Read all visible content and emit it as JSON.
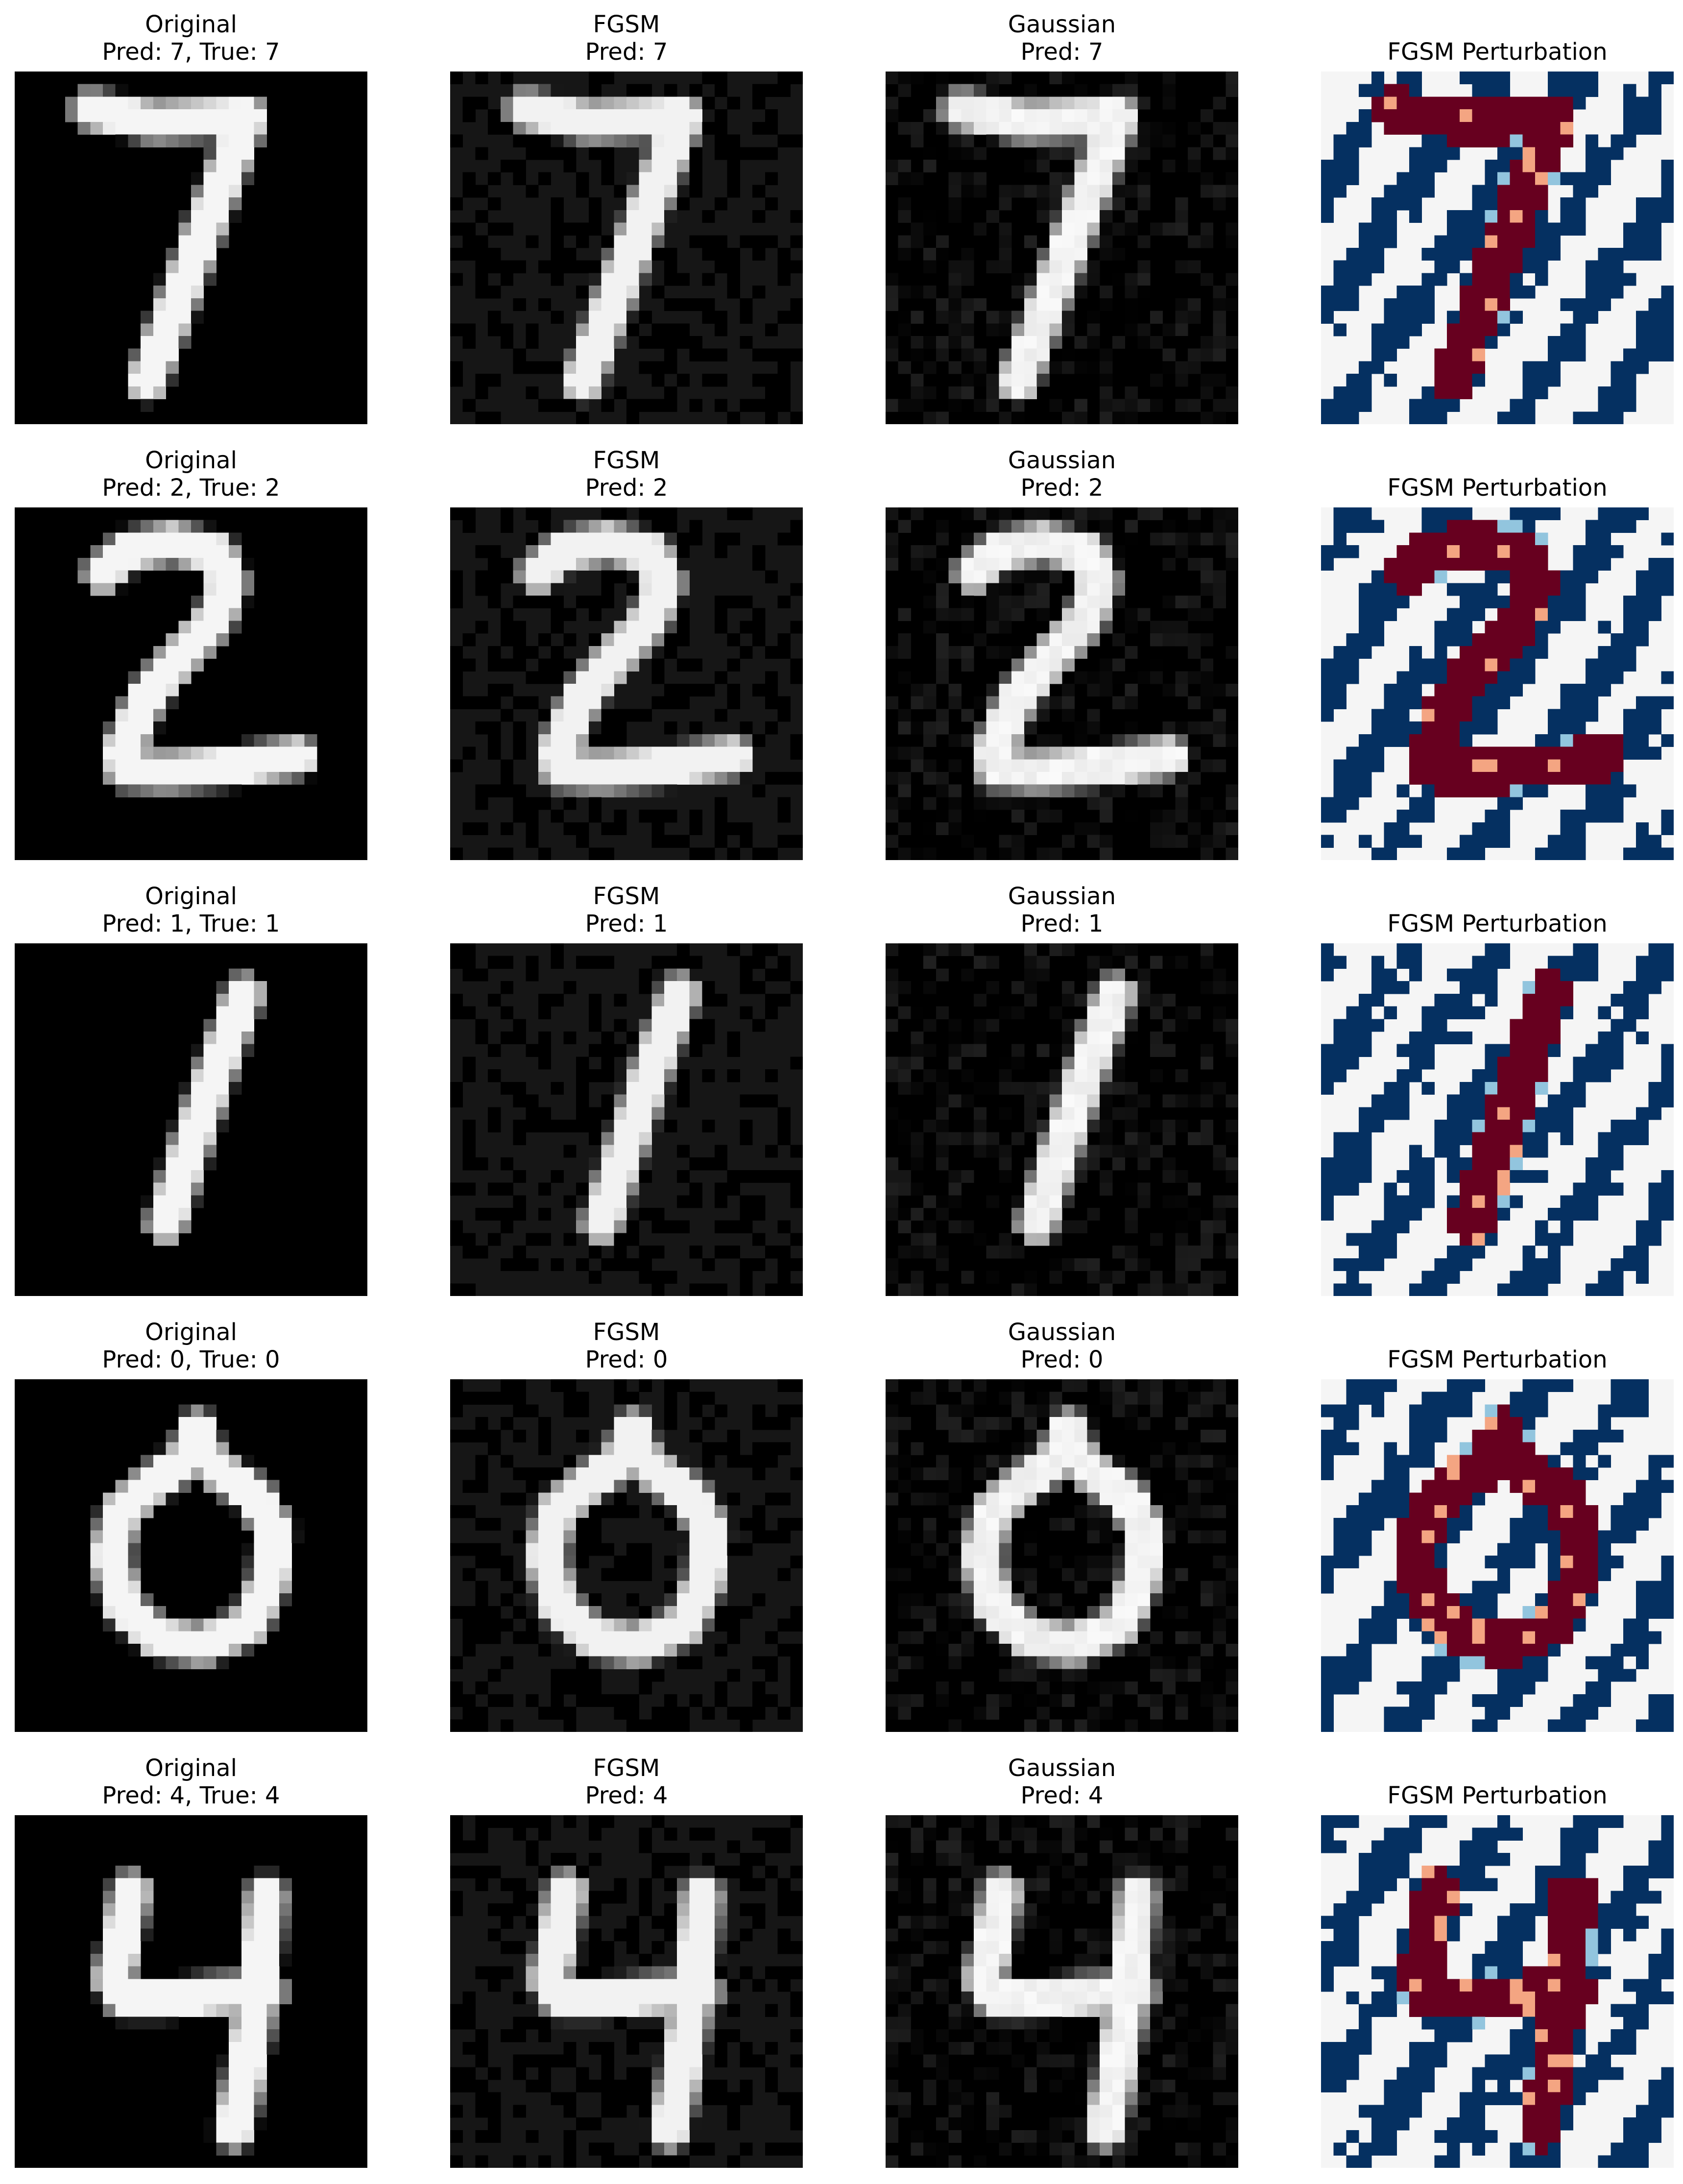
{
  "rows": [
    {
      "digit": "7",
      "original": {
        "line1": "Original",
        "line2": "Pred: 7, True: 7"
      },
      "fgsm": {
        "line1": "FGSM",
        "line2": "Pred: 7"
      },
      "gaussian": {
        "line1": "Gaussian",
        "line2": "Pred: 7"
      },
      "perturbation": {
        "line1": "",
        "line2": "FGSM Perturbation"
      }
    },
    {
      "digit": "2",
      "original": {
        "line1": "Original",
        "line2": "Pred: 2, True: 2"
      },
      "fgsm": {
        "line1": "FGSM",
        "line2": "Pred: 2"
      },
      "gaussian": {
        "line1": "Gaussian",
        "line2": "Pred: 2"
      },
      "perturbation": {
        "line1": "",
        "line2": "FGSM Perturbation"
      }
    },
    {
      "digit": "1",
      "original": {
        "line1": "Original",
        "line2": "Pred: 1, True: 1"
      },
      "fgsm": {
        "line1": "FGSM",
        "line2": "Pred: 1"
      },
      "gaussian": {
        "line1": "Gaussian",
        "line2": "Pred: 1"
      },
      "perturbation": {
        "line1": "",
        "line2": "FGSM Perturbation"
      }
    },
    {
      "digit": "0",
      "original": {
        "line1": "Original",
        "line2": "Pred: 0, True: 0"
      },
      "fgsm": {
        "line1": "FGSM",
        "line2": "Pred: 0"
      },
      "gaussian": {
        "line1": "Gaussian",
        "line2": "Pred: 0"
      },
      "perturbation": {
        "line1": "",
        "line2": "FGSM Perturbation"
      }
    },
    {
      "digit": "4",
      "original": {
        "line1": "Original",
        "line2": "Pred: 4, True: 4"
      },
      "fgsm": {
        "line1": "FGSM",
        "line2": "Pred: 4"
      },
      "gaussian": {
        "line1": "Gaussian",
        "line2": "Pred: 4"
      },
      "perturbation": {
        "line1": "",
        "line2": "FGSM Perturbation"
      }
    }
  ],
  "colors": {
    "image_background": "#000000",
    "fgsm_background": "#161616",
    "digit_stroke": "#f0f0f0",
    "perturbation_positive": "#67001f",
    "perturbation_negative": "#053061",
    "perturbation_neutral": "#f5f5f5",
    "perturbation_light_red": "#f4a582",
    "perturbation_light_blue": "#92c5de"
  }
}
